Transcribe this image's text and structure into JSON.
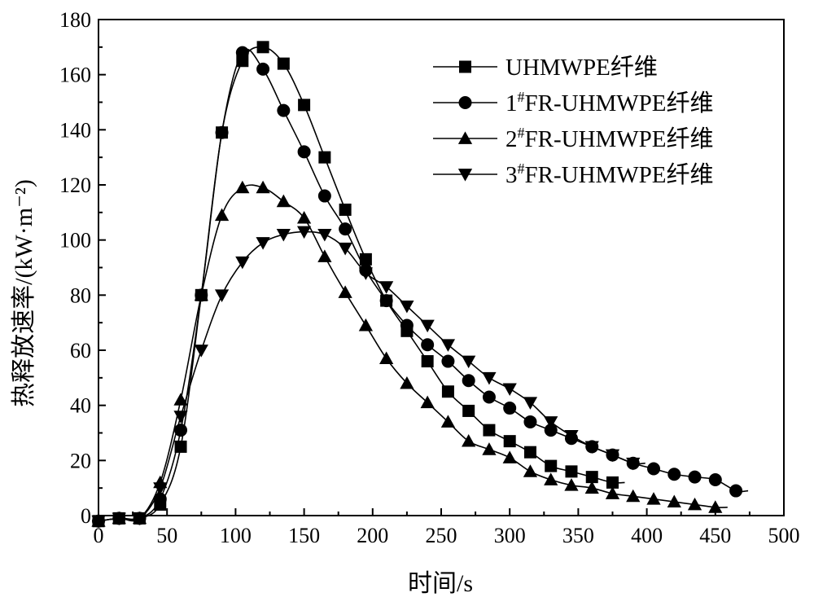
{
  "chart_data": {
    "type": "line",
    "title": "",
    "xlabel": "时间/s",
    "ylabel": "热释放速率/(kW·m⁻²)",
    "xlim": [
      0,
      500
    ],
    "ylim": [
      0,
      180
    ],
    "x_ticks": [
      "0",
      "50",
      "100",
      "150",
      "200",
      "250",
      "300",
      "350",
      "400",
      "450",
      "500"
    ],
    "y_ticks": [
      "0",
      "20",
      "40",
      "60",
      "80",
      "100",
      "120",
      "140",
      "160",
      "180"
    ],
    "grid": false,
    "legend_position": "top-right",
    "series": [
      {
        "name": "UHMWPE纤维",
        "marker": "square",
        "x": [
          0,
          15,
          30,
          45,
          60,
          75,
          90,
          105,
          120,
          135,
          150,
          165,
          180,
          195,
          210,
          225,
          240,
          255,
          270,
          285,
          300,
          315,
          330,
          345,
          360,
          375
        ],
        "y": [
          -2,
          -1,
          -1,
          4,
          25,
          80,
          139,
          165,
          170,
          164,
          149,
          130,
          111,
          93,
          78,
          67,
          56,
          45,
          38,
          31,
          27,
          23,
          18,
          16,
          14,
          12
        ]
      },
      {
        "name": "1#FR-UHMWPE纤维",
        "marker": "circle",
        "x": [
          0,
          15,
          30,
          45,
          60,
          75,
          90,
          105,
          120,
          135,
          150,
          165,
          180,
          195,
          210,
          225,
          240,
          255,
          270,
          285,
          300,
          315,
          330,
          345,
          360,
          375,
          390,
          405,
          420,
          435,
          450,
          465
        ],
        "y": [
          -2,
          -1,
          -1,
          6,
          31,
          80,
          139,
          168,
          162,
          147,
          132,
          116,
          104,
          89,
          78,
          69,
          62,
          56,
          49,
          43,
          39,
          34,
          31,
          28,
          25,
          22,
          19,
          17,
          15,
          14,
          13,
          9
        ]
      },
      {
        "name": "2#FR-UHMWPE纤维",
        "marker": "triangle-up",
        "x": [
          0,
          15,
          30,
          45,
          60,
          75,
          90,
          105,
          120,
          135,
          150,
          165,
          180,
          195,
          210,
          225,
          240,
          255,
          270,
          285,
          300,
          315,
          330,
          345,
          360,
          375,
          390,
          405,
          420,
          435,
          450
        ],
        "y": [
          -2,
          -1,
          -1,
          12,
          42,
          80,
          109,
          119,
          119,
          114,
          108,
          94,
          81,
          69,
          57,
          48,
          41,
          34,
          27,
          24,
          21,
          16,
          13,
          11,
          10,
          8,
          7,
          6,
          5,
          4,
          3
        ]
      },
      {
        "name": "3#FR-UHMWPE纤维",
        "marker": "triangle-down",
        "x": [
          0,
          15,
          30,
          45,
          60,
          75,
          90,
          105,
          120,
          135,
          150,
          165,
          180,
          195,
          210,
          225,
          240,
          255,
          270,
          285,
          300,
          315,
          330,
          345,
          360,
          375,
          390
        ],
        "y": [
          -2,
          -1,
          -1,
          10,
          36,
          60,
          80,
          92,
          99,
          102,
          103,
          102,
          97,
          88,
          83,
          76,
          69,
          62,
          56,
          50,
          46,
          41,
          34,
          29,
          25,
          22,
          19
        ]
      }
    ]
  }
}
